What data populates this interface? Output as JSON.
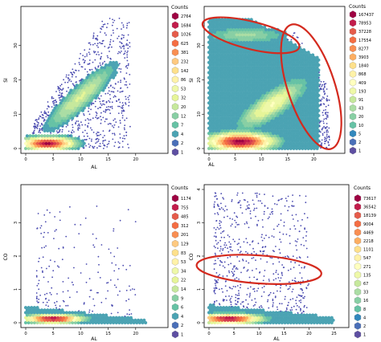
{
  "chart_data": [
    {
      "type": "heatmap",
      "title": "",
      "xlabel": "AL",
      "ylabel": "SI",
      "xlim": [
        0,
        25
      ],
      "ylim": [
        0,
        40
      ],
      "xticks": [
        0,
        5,
        10,
        15,
        20
      ],
      "yticks": [
        0,
        10,
        20,
        30
      ],
      "legend_title": "Counts",
      "legend_values": [
        "2764",
        "1684",
        "1026",
        "625",
        "381",
        "232",
        "142",
        "86",
        "53",
        "32",
        "20",
        "12",
        "7",
        "4",
        "2",
        "1"
      ],
      "legend_placement": "right",
      "grid": false,
      "annotations": []
    },
    {
      "type": "heatmap",
      "title": "",
      "xlabel": "AL",
      "ylabel": "SI",
      "xlim": [
        0,
        25
      ],
      "ylim": [
        0,
        40
      ],
      "xticks": [
        0,
        5,
        10,
        15,
        20
      ],
      "yticks": [
        0,
        10,
        20,
        30
      ],
      "legend_title": "Counts",
      "legend_values": [
        "167437",
        "78953",
        "37228",
        "17554",
        "8277",
        "3903",
        "1840",
        "868",
        "409",
        "193",
        "91",
        "43",
        "20",
        "10",
        "5",
        "2",
        "1"
      ],
      "legend_placement": "right",
      "grid": false,
      "annotations": [
        {
          "shape": "ellipse",
          "color": "#d42a1e",
          "cx": 8,
          "cy": 33,
          "rx": 9.5,
          "ry": 4
        },
        {
          "shape": "ellipse",
          "color": "#d42a1e",
          "cx": 19.5,
          "cy": 18,
          "rx": 4.5,
          "ry": 19
        }
      ]
    },
    {
      "type": "heatmap",
      "title": "",
      "xlabel": "AL",
      "ylabel": "CO",
      "xlim": [
        0,
        25
      ],
      "ylim": [
        0,
        4
      ],
      "xticks": [
        0,
        5,
        10,
        15,
        20
      ],
      "yticks": [
        0,
        1,
        2,
        3
      ],
      "legend_title": "Counts",
      "legend_values": [
        "1174",
        "755",
        "485",
        "312",
        "201",
        "129",
        "83",
        "53",
        "34",
        "22",
        "14",
        "9",
        "6",
        "4",
        "2",
        "1"
      ],
      "legend_placement": "right",
      "grid": false,
      "annotations": []
    },
    {
      "type": "heatmap",
      "title": "",
      "xlabel": "AL",
      "ylabel": "CO",
      "xlim": [
        0,
        27
      ],
      "ylim": [
        0,
        4
      ],
      "xticks": [
        0,
        5,
        10,
        15,
        20,
        25
      ],
      "yticks": [
        0,
        1,
        2,
        3,
        4
      ],
      "legend_title": "Counts",
      "legend_values": [
        "73617",
        "36542",
        "18139",
        "9004",
        "4469",
        "2218",
        "1101",
        "547",
        "271",
        "135",
        "67",
        "33",
        "16",
        "8",
        "4",
        "2",
        "1"
      ],
      "legend_placement": "right",
      "grid": false,
      "annotations": [
        {
          "shape": "ellipse",
          "color": "#d42a1e",
          "cx": 10,
          "cy": 1.6,
          "rx": 12.5,
          "ry": 0.42
        }
      ]
    }
  ],
  "palette": [
    "#9e0142",
    "#c21c4b",
    "#d53e4f",
    "#e55b4a",
    "#f46d43",
    "#f98e52",
    "#fdae61",
    "#fec980",
    "#fee08b",
    "#fff2a8",
    "#ffffbf",
    "#eef8a8",
    "#e6f598",
    "#c6e89c",
    "#abdda4",
    "#88cfa4",
    "#66c2a5",
    "#4ba3b3",
    "#3288bd",
    "#4a6fb8",
    "#5e4fa2"
  ]
}
